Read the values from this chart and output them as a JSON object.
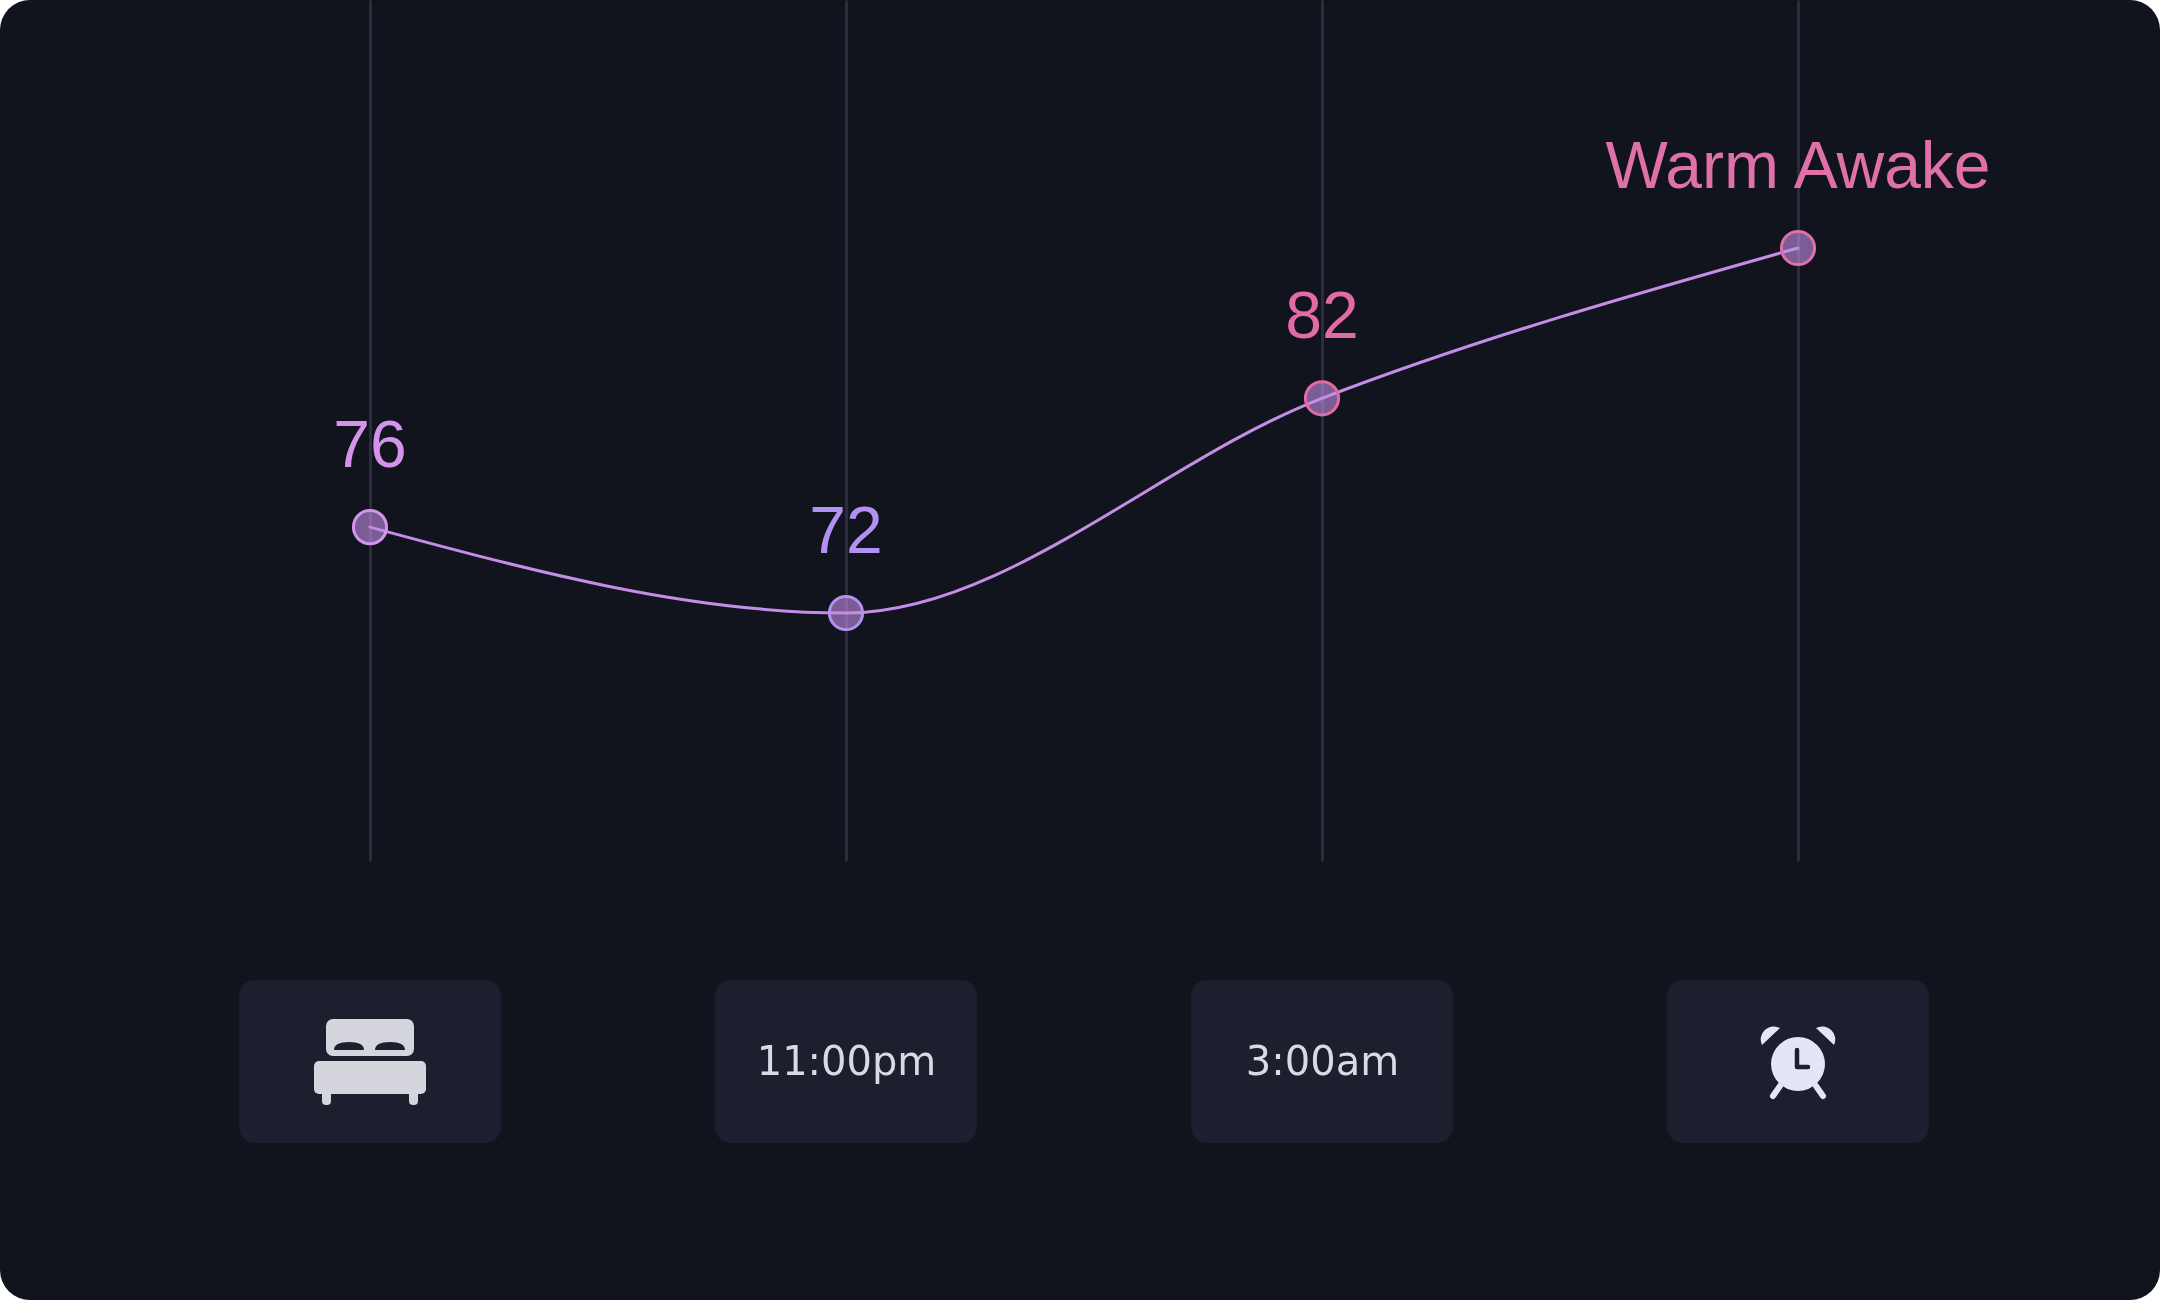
{
  "chart_data": {
    "type": "line",
    "categories": [
      null,
      "11:00pm",
      "3:00am",
      null
    ],
    "series": [
      {
        "color": "#c58de6",
        "values": [
          76,
          72,
          82,
          89
        ],
        "colors": [
          "#d494ec",
          "#b391f2",
          "#e26aa6",
          "#e070a8"
        ],
        "value_labels": [
          "76",
          "72",
          "82",
          "Warm Awake"
        ]
      }
    ],
    "grid": "x",
    "marker": "circle",
    "line_style": "solid",
    "tick_labels": "x"
  }
}
